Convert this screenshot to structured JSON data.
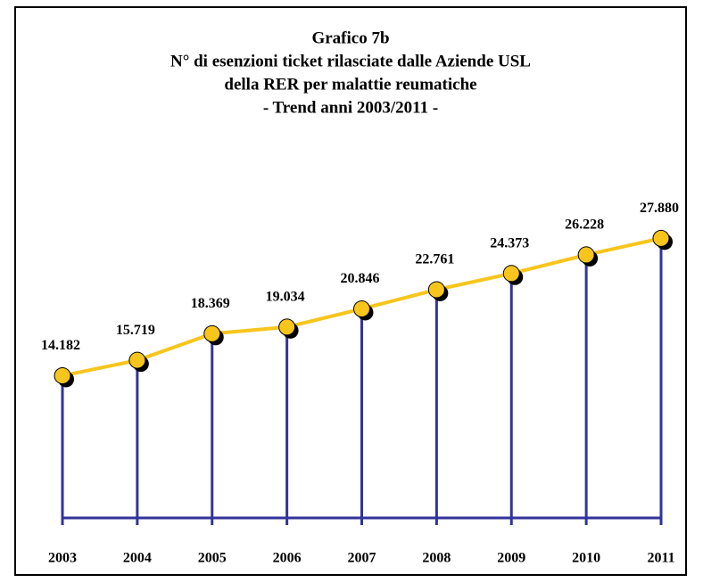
{
  "chart_data": {
    "type": "line",
    "title": [
      "Grafico 7b",
      "N° di esenzioni ticket rilasciate dalle Aziende USL",
      "della RER per malattie reumatiche",
      "- Trend anni 2003/2011 -"
    ],
    "categories": [
      "2003",
      "2004",
      "2005",
      "2006",
      "2007",
      "2008",
      "2009",
      "2010",
      "2011"
    ],
    "series": [
      {
        "color": "#f7c51c",
        "stem_color": "#33339a",
        "values": [
          14182,
          15719,
          18369,
          19034,
          20846,
          22761,
          24373,
          26228,
          27880
        ],
        "value_labels": [
          "14.182",
          "15.719",
          "18.369",
          "19.034",
          "20.846",
          "22.761",
          "24.373",
          "26.228",
          "27.880"
        ]
      }
    ],
    "ylim": [
      0,
      32000
    ]
  }
}
